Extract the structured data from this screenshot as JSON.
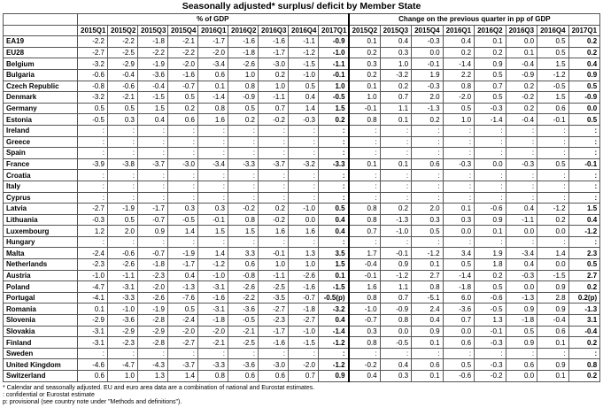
{
  "title": "Seasonally adjusted* surplus/ deficit by Member State",
  "header": {
    "group1": "% of GDP",
    "group2": "Change on the previous quarter in pp of GDP",
    "cols1": [
      "2015Q1",
      "2015Q2",
      "2015Q3",
      "2015Q4",
      "2016Q1",
      "2016Q2",
      "2016Q3",
      "2016Q4",
      "2017Q1"
    ],
    "cols2": [
      "2015Q2",
      "2015Q3",
      "2015Q4",
      "2016Q1",
      "2016Q2",
      "2016Q3",
      "2016Q4",
      "2017Q1"
    ]
  },
  "rows": [
    [
      "EA19",
      "-2.2",
      "-2.2",
      "-1.8",
      "-2.1",
      "-1.7",
      "-1.6",
      "-1.6",
      "-1.1",
      "-0.9",
      "0.1",
      "0.4",
      "-0.3",
      "0.4",
      "0.1",
      "0.0",
      "0.5",
      "0.2"
    ],
    [
      "EU28",
      "-2.7",
      "-2.5",
      "-2.2",
      "-2.2",
      "-2.0",
      "-1.8",
      "-1.7",
      "-1.2",
      "-1.0",
      "0.2",
      "0.3",
      "0.0",
      "0.2",
      "0.2",
      "0.1",
      "0.5",
      "0.2"
    ],
    [
      "Belgium",
      "-3.2",
      "-2.9",
      "-1.9",
      "-2.0",
      "-3.4",
      "-2.6",
      "-3.0",
      "-1.5",
      "-1.1",
      "0.3",
      "1.0",
      "-0.1",
      "-1.4",
      "0.9",
      "-0.4",
      "1.5",
      "0.4"
    ],
    [
      "Bulgaria",
      "-0.6",
      "-0.4",
      "-3.6",
      "-1.6",
      "0.6",
      "1.0",
      "0.2",
      "-1.0",
      "-0.1",
      "0.2",
      "-3.2",
      "1.9",
      "2.2",
      "0.5",
      "-0.9",
      "-1.2",
      "0.9"
    ],
    [
      "Czech Republic",
      "-0.8",
      "-0.6",
      "-0.4",
      "-0.7",
      "0.1",
      "0.8",
      "1.0",
      "0.5",
      "1.0",
      "0.1",
      "0.2",
      "-0.3",
      "0.8",
      "0.7",
      "0.2",
      "-0.5",
      "0.5"
    ],
    [
      "Denmark",
      "-3.2",
      "-2.1",
      "-1.5",
      "0.5",
      "-1.4",
      "-0.9",
      "-1.1",
      "0.4",
      "-0.5",
      "1.0",
      "0.7",
      "2.0",
      "-2.0",
      "0.5",
      "-0.2",
      "1.5",
      "-0.9"
    ],
    [
      "Germany",
      "0.5",
      "0.5",
      "1.5",
      "0.2",
      "0.8",
      "0.5",
      "0.7",
      "1.4",
      "1.5",
      "-0.1",
      "1.1",
      "-1.3",
      "0.5",
      "-0.3",
      "0.2",
      "0.6",
      "0.0"
    ],
    [
      "Estonia",
      "-0.5",
      "0.3",
      "0.4",
      "0.6",
      "1.6",
      "0.2",
      "-0.2",
      "-0.3",
      "0.2",
      "0.8",
      "0.1",
      "0.2",
      "1.0",
      "-1.4",
      "-0.4",
      "-0.1",
      "0.5"
    ],
    [
      "Ireland",
      ":",
      ":",
      ":",
      ":",
      ":",
      ":",
      ":",
      ":",
      ":",
      ":",
      ":",
      ":",
      ":",
      ":",
      ":",
      ":",
      ":"
    ],
    [
      "Greece",
      ":",
      ":",
      ":",
      ":",
      ":",
      ":",
      ":",
      ":",
      ":",
      ":",
      ":",
      ":",
      ":",
      ":",
      ":",
      ":",
      ":"
    ],
    [
      "Spain",
      ":",
      ":",
      ":",
      ":",
      ":",
      ":",
      ":",
      ":",
      ":",
      ":",
      ":",
      ":",
      ":",
      ":",
      ":",
      ":",
      ":"
    ],
    [
      "France",
      "-3.9",
      "-3.8",
      "-3.7",
      "-3.0",
      "-3.4",
      "-3.3",
      "-3.7",
      "-3.2",
      "-3.3",
      "0.1",
      "0.1",
      "0.6",
      "-0.3",
      "0.0",
      "-0.3",
      "0.5",
      "-0.1"
    ],
    [
      "Croatia",
      ":",
      ":",
      ":",
      ":",
      ":",
      ":",
      ":",
      ":",
      ":",
      ":",
      ":",
      ":",
      ":",
      ":",
      ":",
      ":",
      ":"
    ],
    [
      "Italy",
      ":",
      ":",
      ":",
      ":",
      ":",
      ":",
      ":",
      ":",
      ":",
      ":",
      ":",
      ":",
      ":",
      ":",
      ":",
      ":",
      ":"
    ],
    [
      "Cyprus",
      ":",
      ":",
      ":",
      ":",
      ":",
      ":",
      ":",
      ":",
      ":",
      ":",
      ":",
      ":",
      ":",
      ":",
      ":",
      ":",
      ":"
    ],
    [
      "Latvia",
      "-2.7",
      "-1.9",
      "-1.7",
      "0.3",
      "0.3",
      "-0.2",
      "0.2",
      "-1.0",
      "0.5",
      "0.8",
      "0.2",
      "2.0",
      "0.1",
      "-0.6",
      "0.4",
      "-1.2",
      "1.5"
    ],
    [
      "Lithuania",
      "-0.3",
      "0.5",
      "-0.7",
      "-0.5",
      "-0.1",
      "0.8",
      "-0.2",
      "0.0",
      "0.4",
      "0.8",
      "-1.3",
      "0.3",
      "0.3",
      "0.9",
      "-1.1",
      "0.2",
      "0.4"
    ],
    [
      "Luxembourg",
      "1.2",
      "2.0",
      "0.9",
      "1.4",
      "1.5",
      "1.5",
      "1.6",
      "1.6",
      "0.4",
      "0.7",
      "-1.0",
      "0.5",
      "0.0",
      "0.1",
      "0.0",
      "0.0",
      "-1.2"
    ],
    [
      "Hungary",
      ":",
      ":",
      ":",
      ":",
      ":",
      ":",
      ":",
      ":",
      ":",
      ":",
      ":",
      ":",
      ":",
      ":",
      ":",
      ":",
      ":"
    ],
    [
      "Malta",
      "-2.4",
      "-0.6",
      "-0.7",
      "-1.9",
      "1.4",
      "3.3",
      "-0.1",
      "1.3",
      "3.5",
      "1.7",
      "-0.1",
      "-1.2",
      "3.4",
      "1.9",
      "-3.4",
      "1.4",
      "2.3"
    ],
    [
      "Netherlands",
      "-2.3",
      "-2.6",
      "-1.8",
      "-1.7",
      "-1.2",
      "0.6",
      "1.0",
      "1.0",
      "1.5",
      "-0.4",
      "0.9",
      "0.1",
      "0.5",
      "1.8",
      "0.4",
      "0.0",
      "0.5"
    ],
    [
      "Austria",
      "-1.0",
      "-1.1",
      "-2.3",
      "0.4",
      "-1.0",
      "-0.8",
      "-1.1",
      "-2.6",
      "0.1",
      "-0.1",
      "-1.2",
      "2.7",
      "-1.4",
      "0.2",
      "-0.3",
      "-1.5",
      "2.7"
    ],
    [
      "Poland",
      "-4.7",
      "-3.1",
      "-2.0",
      "-1.3",
      "-3.1",
      "-2.6",
      "-2.5",
      "-1.6",
      "-1.5",
      "1.6",
      "1.1",
      "0.8",
      "-1.8",
      "0.5",
      "0.0",
      "0.9",
      "0.2"
    ],
    [
      "Portugal",
      "-4.1",
      "-3.3",
      "-2.6",
      "-7.6",
      "-1.6",
      "-2.2",
      "-3.5",
      "-0.7",
      "-0.5(p)",
      "0.8",
      "0.7",
      "-5.1",
      "6.0",
      "-0.6",
      "-1.3",
      "2.8",
      "0.2(p)"
    ],
    [
      "Romania",
      "0.1",
      "-1.0",
      "-1.9",
      "0.5",
      "-3.1",
      "-3.6",
      "-2.7",
      "-1.8",
      "-3.2",
      "-1.0",
      "-0.9",
      "2.4",
      "-3.6",
      "-0.5",
      "0.9",
      "0.9",
      "-1.3"
    ],
    [
      "Slovenia",
      "-2.9",
      "-3.6",
      "-2.8",
      "-2.4",
      "-1.8",
      "-0.5",
      "-2.3",
      "-2.7",
      "0.4",
      "-0.7",
      "0.8",
      "0.4",
      "0.7",
      "1.3",
      "-1.8",
      "-0.4",
      "3.1"
    ],
    [
      "Slovakia",
      "-3.1",
      "-2.9",
      "-2.9",
      "-2.0",
      "-2.0",
      "-2.1",
      "-1.7",
      "-1.0",
      "-1.4",
      "0.3",
      "0.0",
      "0.9",
      "0.0",
      "-0.1",
      "0.5",
      "0.6",
      "-0.4"
    ],
    [
      "Finland",
      "-3.1",
      "-2.3",
      "-2.8",
      "-2.7",
      "-2.1",
      "-2.5",
      "-1.6",
      "-1.5",
      "-1.2",
      "0.8",
      "-0.5",
      "0.1",
      "0.6",
      "-0.3",
      "0.9",
      "0.1",
      "0.2"
    ],
    [
      "Sweden",
      ":",
      ":",
      ":",
      ":",
      ":",
      ":",
      ":",
      ":",
      ":",
      ":",
      ":",
      ":",
      ":",
      ":",
      ":",
      ":",
      ":"
    ],
    [
      "United Kingdom",
      "-4.6",
      "-4.7",
      "-4.3",
      "-3.7",
      "-3.3",
      "-3.6",
      "-3.0",
      "-2.0",
      "-1.2",
      "-0.2",
      "0.4",
      "0.6",
      "0.5",
      "-0.3",
      "0.6",
      "0.9",
      "0.8"
    ],
    [
      "Switzerland",
      "0.6",
      "1.0",
      "1.3",
      "1.4",
      "0.8",
      "0.6",
      "0.6",
      "0.7",
      "0.9",
      "0.4",
      "0.3",
      "0.1",
      "-0.6",
      "-0.2",
      "0.0",
      "0.1",
      "0.2"
    ]
  ],
  "footnotes": [
    "*  Calendar and seasonally adjusted. EU and euro area data are a combination of national and Eurostat estimates.",
    ":  confidential or Eurostat estimate",
    "p: provisional (see country note under \"Methods and definitions\")."
  ]
}
